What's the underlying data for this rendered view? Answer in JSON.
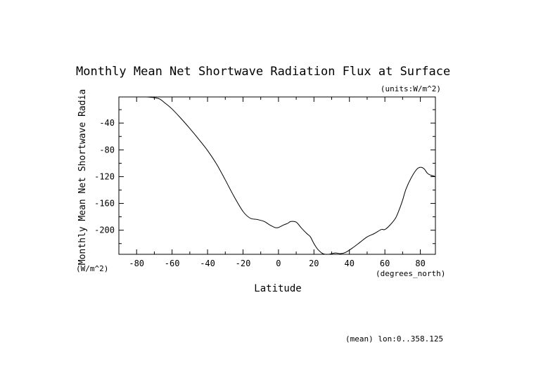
{
  "chart_data": {
    "type": "line",
    "title": "Monthly Mean Net Shortwave Radiation Flux at Surface",
    "units_label": "(units:W/m^2)",
    "xlabel": "Latitude",
    "xunits": "(degrees_north)",
    "ylabel": "Monthly Mean Net Shortwave Radia",
    "yunits": "(W/m^2)",
    "footnote": "(mean) lon:0..358.125",
    "xlim": [
      -90,
      88.5
    ],
    "ylim": [
      -236,
      -1
    ],
    "xticks": [
      -80,
      -60,
      -40,
      -20,
      0,
      20,
      40,
      60,
      80
    ],
    "yticks": [
      -40,
      -80,
      -120,
      -160,
      -200
    ],
    "xtick_labels": [
      "-80",
      "-60",
      "-40",
      "-20",
      "0",
      "20",
      "40",
      "60",
      "80"
    ],
    "ytick_labels": [
      "-40",
      "-80",
      "-120",
      "-160",
      "-200"
    ],
    "grid": false,
    "series": [
      {
        "x": [
          -74,
          -70,
          -67,
          -64,
          -60,
          -55,
          -50,
          -45,
          -40,
          -35,
          -30,
          -25,
          -20,
          -16,
          -12,
          -8,
          -5,
          -2,
          0,
          3,
          5,
          7,
          10,
          13,
          16,
          18,
          20,
          22,
          25,
          28,
          32,
          35,
          38,
          42,
          46,
          50,
          54,
          58,
          60,
          63,
          66,
          68,
          70,
          72,
          75,
          78,
          80,
          82,
          84,
          86,
          88
        ],
        "y": [
          -1,
          -2,
          -4,
          -10,
          -19,
          -33,
          -48,
          -64,
          -81,
          -101,
          -125,
          -150,
          -172,
          -182,
          -184,
          -187,
          -192,
          -196,
          -196,
          -192,
          -190,
          -187,
          -188,
          -197,
          -205,
          -210,
          -220,
          -228,
          -235,
          -236,
          -234,
          -235,
          -233,
          -226,
          -218,
          -210,
          -205,
          -199,
          -199,
          -192,
          -182,
          -170,
          -155,
          -138,
          -121,
          -109,
          -106,
          -108,
          -115,
          -118,
          -119
        ]
      }
    ]
  }
}
